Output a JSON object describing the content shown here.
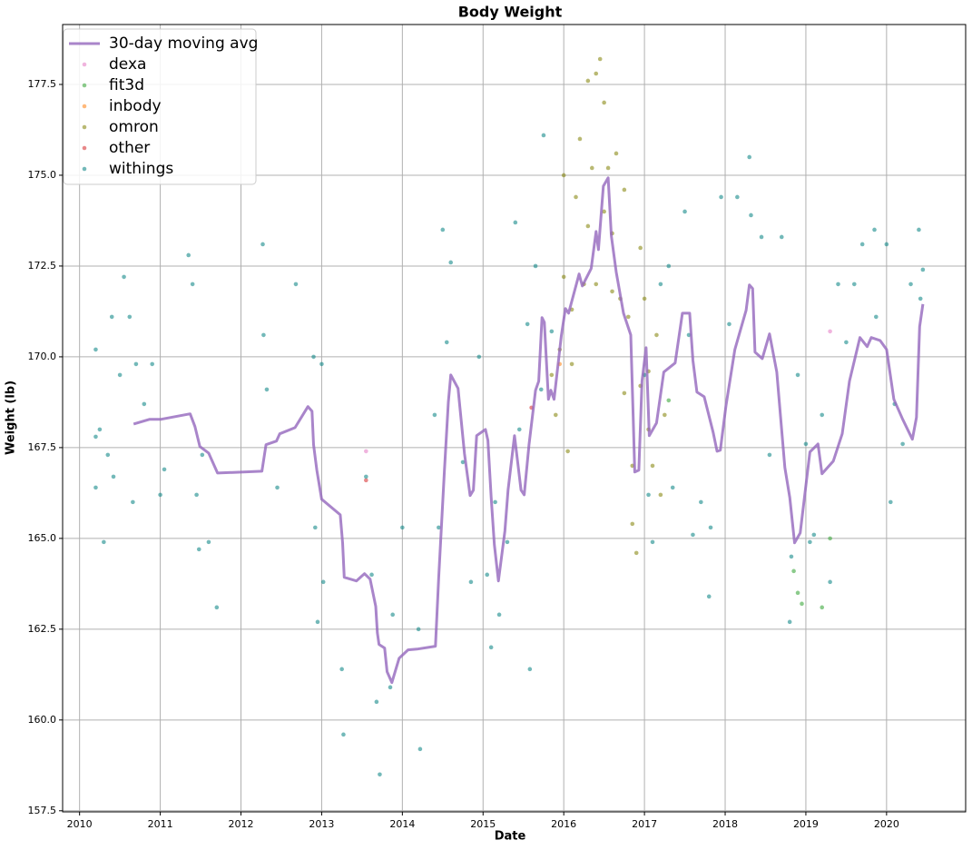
{
  "chart_data": {
    "type": "scatter",
    "title": "Body Weight",
    "x_label": "Date",
    "y_label": "Weight (lb)",
    "xlim": [
      2009.79,
      2020.98
    ],
    "ylim": [
      157.47,
      179.15
    ],
    "xticks": [
      2010,
      2011,
      2012,
      2013,
      2014,
      2015,
      2016,
      2017,
      2018,
      2019,
      2020
    ],
    "yticks": [
      157.5,
      {
        "value": 160,
        "label": "160.0"
      },
      162.5,
      {
        "value": 165,
        "label": "165.0"
      },
      167.5,
      {
        "value": 170,
        "label": "170.0"
      },
      172.5,
      {
        "value": 175,
        "label": "175.0"
      },
      177.5
    ],
    "grid": true,
    "legend": "upper left",
    "series": [
      {
        "name": "30-day moving avg",
        "type": "line",
        "color": "#9467bd",
        "x": [
          2010.67,
          2010.87,
          2011.01,
          2011.37,
          2011.43,
          2011.49,
          2011.6,
          2011.71,
          2012.26,
          2012.31,
          2012.44,
          2012.48,
          2012.67,
          2012.83,
          2012.88,
          2012.9,
          2012.94,
          2013.0,
          2013.23,
          2013.26,
          2013.28,
          2013.43,
          2013.53,
          2013.6,
          2013.67,
          2013.69,
          2013.71,
          2013.78,
          2013.81,
          2013.87,
          2013.96,
          2014.07,
          2014.18,
          2014.41,
          2014.45,
          2014.52,
          2014.57,
          2014.6,
          2014.69,
          2014.77,
          2014.84,
          2014.88,
          2014.92,
          2015.03,
          2015.06,
          2015.1,
          2015.14,
          2015.19,
          2015.27,
          2015.31,
          2015.39,
          2015.47,
          2015.51,
          2015.57,
          2015.65,
          2015.69,
          2015.73,
          2015.76,
          2015.81,
          2015.84,
          2015.88,
          2015.97,
          2016.02,
          2016.06,
          2016.19,
          2016.23,
          2016.34,
          2016.4,
          2016.43,
          2016.49,
          2016.55,
          2016.59,
          2016.65,
          2016.74,
          2016.83,
          2016.86,
          2016.88,
          2016.93,
          2016.97,
          2017.02,
          2017.06,
          2017.15,
          2017.24,
          2017.38,
          2017.47,
          2017.56,
          2017.6,
          2017.65,
          2017.74,
          2017.85,
          2017.9,
          2017.94,
          2018.01,
          2018.12,
          2018.26,
          2018.3,
          2018.34,
          2018.37,
          2018.46,
          2018.55,
          2018.64,
          2018.74,
          2018.8,
          2018.86,
          2018.93,
          2019.05,
          2019.15,
          2019.2,
          2019.34,
          2019.45,
          2019.54,
          2019.67,
          2019.76,
          2019.81,
          2019.92,
          2020.0,
          2020.09,
          2020.2,
          2020.32,
          2020.37,
          2020.41,
          2020.45
        ],
        "values": [
          168.15,
          168.28,
          168.28,
          168.43,
          168.08,
          167.53,
          167.35,
          166.8,
          166.85,
          167.58,
          167.68,
          167.88,
          168.05,
          168.63,
          168.5,
          167.58,
          166.88,
          166.08,
          165.65,
          164.88,
          163.93,
          163.83,
          164.03,
          163.88,
          163.13,
          162.4,
          162.08,
          161.98,
          161.33,
          161.03,
          161.7,
          161.93,
          161.95,
          162.03,
          163.93,
          166.83,
          168.75,
          169.5,
          169.13,
          167.33,
          166.18,
          166.33,
          167.83,
          168.0,
          167.7,
          166.13,
          164.83,
          163.83,
          165.2,
          166.33,
          167.83,
          166.33,
          166.2,
          167.58,
          169.08,
          169.33,
          171.08,
          170.95,
          168.83,
          169.08,
          168.83,
          170.58,
          171.33,
          171.2,
          172.28,
          171.95,
          172.43,
          173.45,
          172.95,
          174.7,
          174.93,
          173.33,
          172.33,
          171.2,
          170.6,
          168.33,
          166.83,
          166.88,
          169.33,
          170.25,
          167.83,
          168.18,
          169.58,
          169.83,
          171.2,
          171.2,
          169.9,
          169.03,
          168.9,
          167.93,
          167.4,
          167.43,
          168.65,
          170.2,
          171.28,
          171.98,
          171.88,
          170.13,
          169.95,
          170.63,
          169.58,
          166.95,
          166.13,
          164.88,
          165.15,
          167.38,
          167.6,
          166.78,
          167.13,
          167.88,
          169.33,
          170.53,
          170.28,
          170.53,
          170.45,
          170.2,
          168.83,
          168.28,
          167.73,
          168.33,
          170.83,
          171.45
        ]
      },
      {
        "name": "dexa",
        "type": "scatter",
        "color": "#e377c2",
        "x": [
          2013.55,
          2019.3
        ],
        "values": [
          167.4,
          170.7
        ]
      },
      {
        "name": "fit3d",
        "type": "scatter",
        "color": "#2ca02c",
        "x": [
          2018.85,
          2018.9,
          2018.95,
          2019.2,
          2019.3,
          2017.3
        ],
        "values": [
          164.1,
          163.5,
          163.2,
          163.1,
          165.0,
          168.8
        ]
      },
      {
        "name": "inbody",
        "type": "scatter",
        "color": "#ff7f0e",
        "x": [
          2015.95
        ],
        "values": [
          169.8
        ]
      },
      {
        "name": "omron",
        "type": "scatter",
        "color": "#808000",
        "x": [
          2015.85,
          2015.9,
          2015.95,
          2016.0,
          2016.0,
          2016.05,
          2016.1,
          2016.15,
          2016.2,
          2016.25,
          2016.3,
          2016.35,
          2016.4,
          2016.45,
          2016.5,
          2016.5,
          2016.55,
          2016.6,
          2016.65,
          2016.7,
          2016.75,
          2016.8,
          2016.85,
          2016.9,
          2016.95,
          2016.95,
          2017.0,
          2017.05,
          2017.1,
          2017.2,
          2016.3,
          2016.1,
          2016.4,
          2016.6,
          2016.75,
          2016.85,
          2017.05,
          2017.15,
          2017.25
        ],
        "values": [
          169.5,
          168.4,
          170.2,
          175.0,
          172.2,
          167.4,
          171.3,
          174.4,
          176.0,
          172.0,
          177.6,
          175.2,
          177.8,
          178.2,
          177.0,
          174.0,
          175.2,
          173.4,
          175.6,
          171.6,
          174.6,
          171.1,
          165.4,
          164.6,
          173.0,
          169.2,
          171.6,
          168.0,
          167.0,
          166.2,
          173.6,
          169.8,
          172.0,
          171.8,
          169.0,
          167.0,
          169.6,
          170.6,
          168.4
        ]
      },
      {
        "name": "other",
        "type": "scatter",
        "color": "#d62728",
        "x": [
          2013.55,
          2015.6
        ],
        "values": [
          166.6,
          168.6
        ]
      },
      {
        "name": "withings",
        "type": "scatter",
        "color": "#008080",
        "x": [
          2010.2,
          2010.2,
          2010.2,
          2010.25,
          2010.3,
          2010.35,
          2010.4,
          2010.42,
          2010.5,
          2010.55,
          2010.62,
          2010.66,
          2010.7,
          2010.8,
          2010.9,
          2011.0,
          2011.05,
          2011.35,
          2011.4,
          2011.45,
          2011.48,
          2011.52,
          2011.6,
          2011.7,
          2012.27,
          2012.28,
          2012.32,
          2012.45,
          2012.68,
          2012.9,
          2012.92,
          2012.95,
          2013.0,
          2013.02,
          2013.25,
          2013.27,
          2013.55,
          2013.62,
          2013.68,
          2013.72,
          2013.85,
          2013.88,
          2014.0,
          2014.2,
          2014.22,
          2014.4,
          2014.45,
          2014.5,
          2014.55,
          2014.6,
          2014.75,
          2014.85,
          2014.95,
          2015.05,
          2015.1,
          2015.15,
          2015.2,
          2015.3,
          2015.4,
          2015.45,
          2015.55,
          2015.58,
          2015.65,
          2015.72,
          2015.75,
          2015.85,
          2017.0,
          2017.05,
          2017.1,
          2017.2,
          2017.3,
          2017.35,
          2017.5,
          2017.55,
          2017.6,
          2017.7,
          2017.8,
          2017.82,
          2017.95,
          2018.05,
          2018.15,
          2018.3,
          2018.32,
          2018.45,
          2018.55,
          2018.7,
          2018.8,
          2018.82,
          2018.9,
          2019.0,
          2019.05,
          2019.1,
          2019.2,
          2019.3,
          2019.4,
          2019.5,
          2019.6,
          2019.7,
          2019.85,
          2019.87,
          2020.0,
          2020.05,
          2020.1,
          2020.2,
          2020.3,
          2020.4,
          2020.42,
          2020.45
        ],
        "values": [
          167.8,
          166.4,
          170.2,
          168.0,
          164.9,
          167.3,
          171.1,
          166.7,
          169.5,
          172.2,
          171.1,
          166.0,
          169.8,
          168.7,
          169.8,
          166.2,
          166.9,
          172.8,
          172.0,
          166.2,
          164.7,
          167.3,
          164.9,
          163.1,
          173.1,
          170.6,
          169.1,
          166.4,
          172.0,
          170.0,
          165.3,
          162.7,
          169.8,
          163.8,
          161.4,
          159.6,
          166.7,
          164.0,
          160.5,
          158.5,
          160.9,
          162.9,
          165.3,
          162.5,
          159.2,
          168.4,
          165.3,
          173.5,
          170.4,
          172.6,
          167.1,
          163.8,
          170.0,
          164.0,
          162.0,
          166.0,
          162.9,
          164.9,
          173.7,
          168.0,
          170.9,
          161.4,
          172.5,
          169.1,
          176.1,
          170.7,
          169.5,
          166.2,
          164.9,
          172.0,
          172.5,
          166.4,
          174.0,
          170.6,
          165.1,
          166.0,
          163.4,
          165.3,
          174.4,
          170.9,
          174.4,
          175.5,
          173.9,
          173.3,
          167.3,
          173.3,
          162.7,
          164.5,
          169.5,
          167.6,
          164.9,
          165.1,
          168.4,
          163.8,
          172.0,
          170.4,
          172.0,
          173.1,
          173.5,
          171.1,
          173.1,
          166.0,
          168.7,
          167.6,
          172.0,
          173.5,
          171.6,
          172.4
        ]
      }
    ]
  }
}
